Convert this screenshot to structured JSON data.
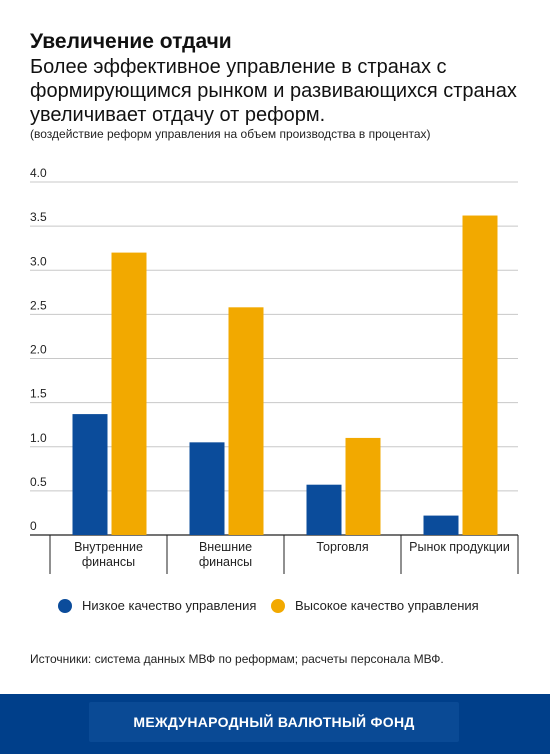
{
  "header": {
    "title": "Увеличение отдачи",
    "subtitle": "Более эффективное управление в странах с формирующимся рынком и развивающихся странах увеличивает отдачу от реформ.",
    "note": "(воздействие реформ управления на объем производства в процентах)"
  },
  "chart_data": {
    "type": "bar",
    "categories": [
      [
        "Внутренние",
        "финансы"
      ],
      [
        "Внешние",
        "финансы"
      ],
      [
        "Торговля"
      ],
      [
        "Рынок продукции"
      ]
    ],
    "series": [
      {
        "name": "Низкое качество управления",
        "color": "#0b4c9b",
        "values": [
          1.37,
          1.05,
          0.57,
          0.22
        ]
      },
      {
        "name": "Высокое качество управления",
        "color": "#f2a900",
        "values": [
          3.2,
          2.58,
          1.1,
          3.62
        ]
      }
    ],
    "ylim": [
      0,
      4.0
    ],
    "yticks": [
      "0",
      "0.5",
      "1.0",
      "1.5",
      "2.0",
      "2.5",
      "3.0",
      "3.5",
      "4.0"
    ],
    "ytick_values": [
      0,
      0.5,
      1.0,
      1.5,
      2.0,
      2.5,
      3.0,
      3.5,
      4.0
    ],
    "grid": true,
    "legend_position": "bottom"
  },
  "source": "Источники: система данных МВФ по реформам; расчеты персонала МВФ.",
  "footer": {
    "text": "МЕЖДУНАРОДНЫЙ ВАЛЮТНЫЙ ФОНД"
  }
}
